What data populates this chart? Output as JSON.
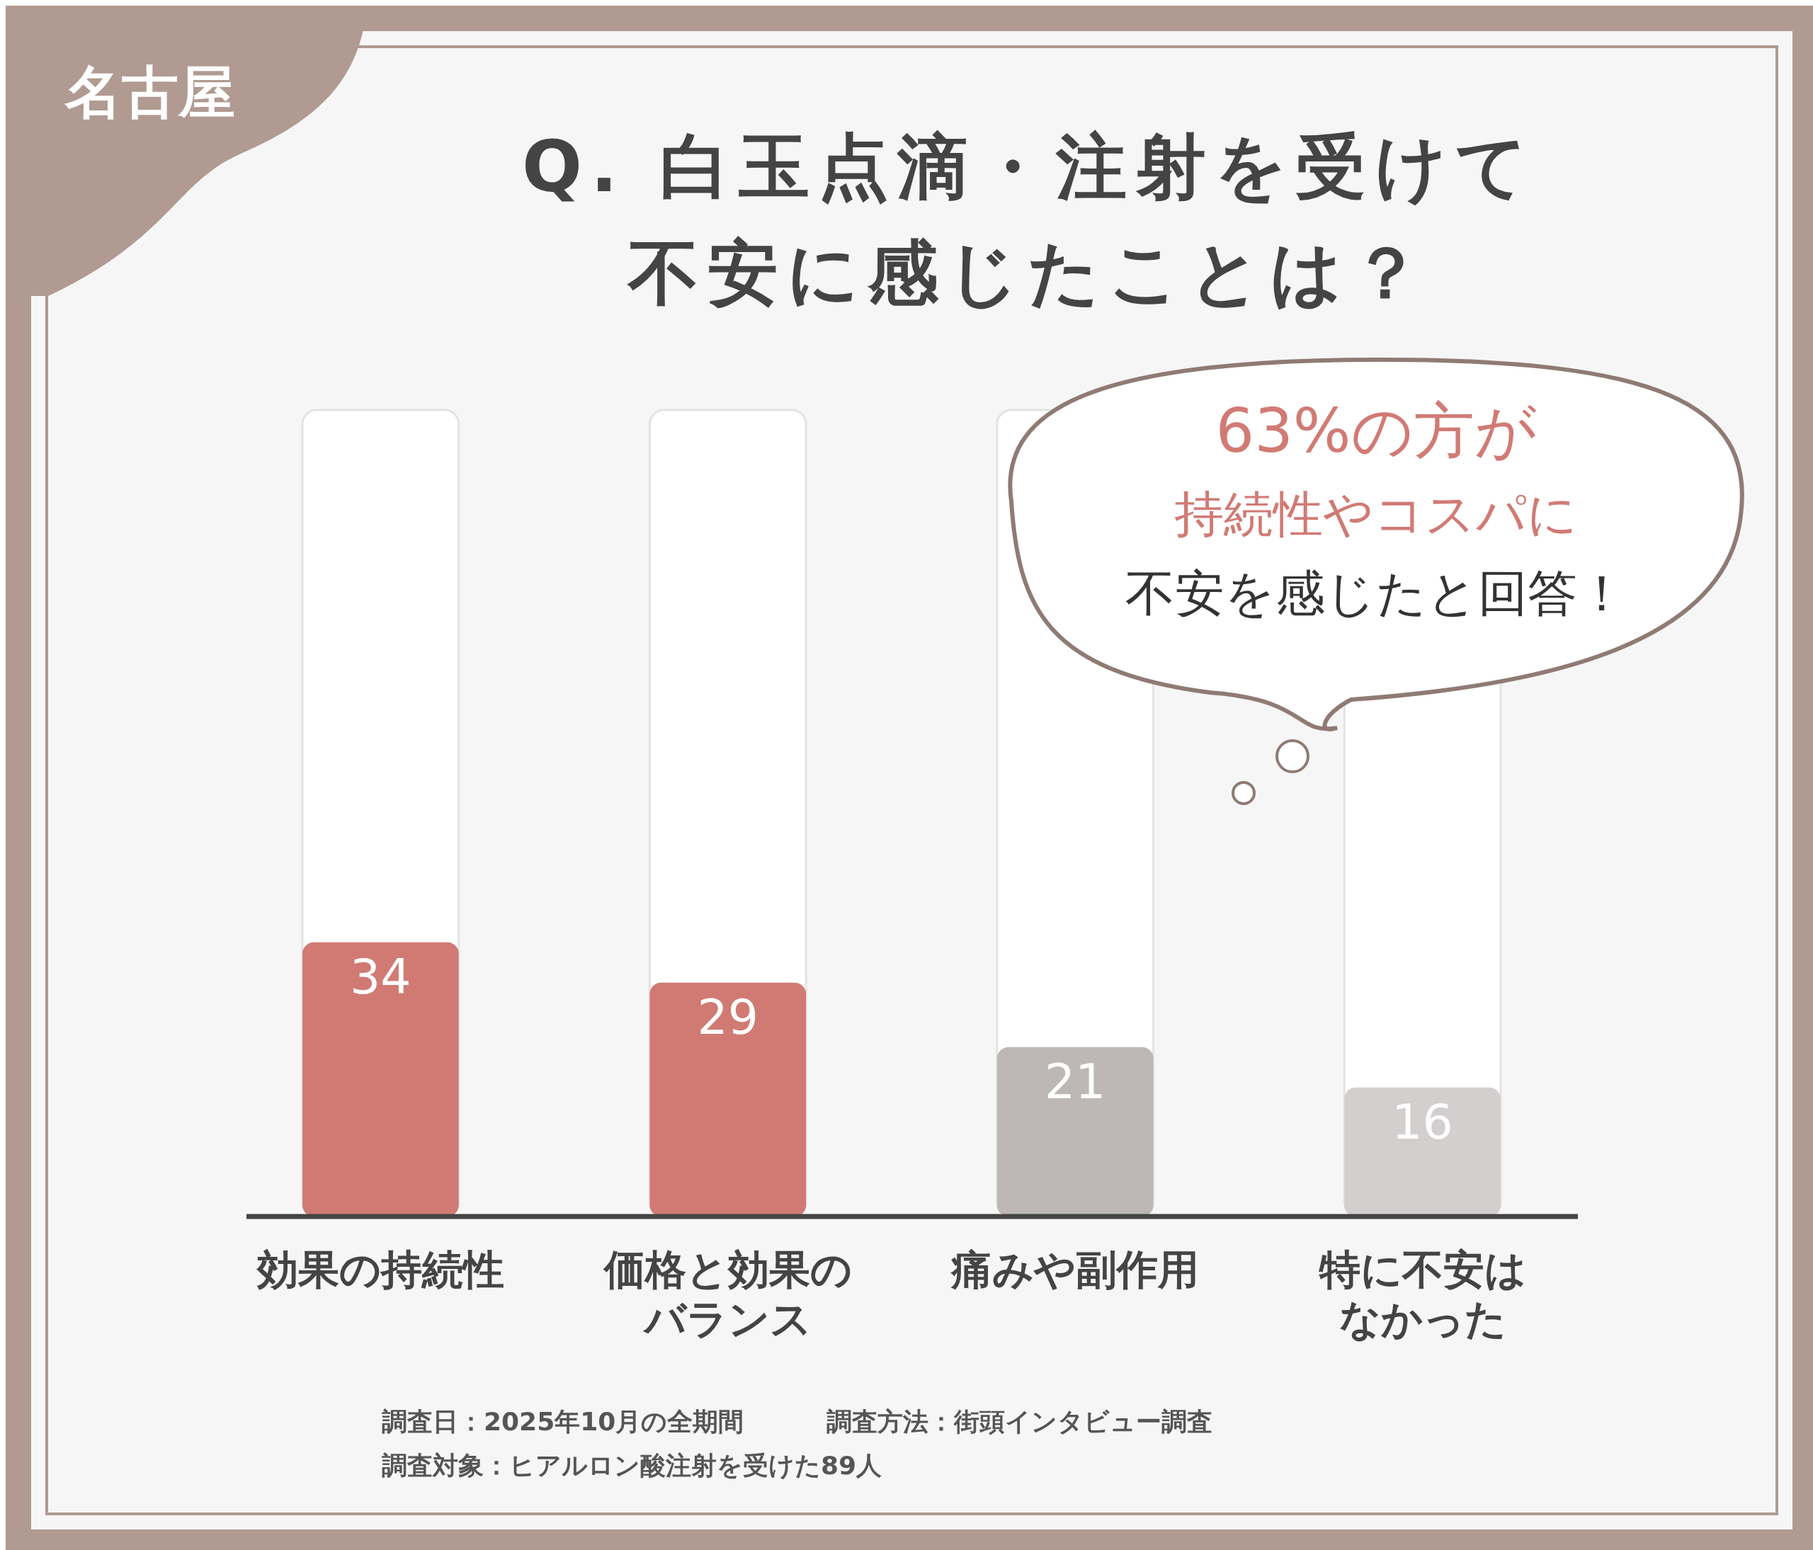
{
  "chart_data": {
    "type": "bar",
    "title": "Q. 白玉点滴・注射を受けて不安に感じたことは？",
    "categories": [
      "効果の持続性",
      "価格と効果のバランス",
      "痛みや副作用",
      "特に不安はなかった"
    ],
    "values": [
      34,
      29,
      21,
      16
    ],
    "colors": [
      "#d17a74",
      "#d17a74",
      "#bdb7b5",
      "#d3cfce"
    ],
    "ylim": [
      0,
      100
    ],
    "tick_labels": "x",
    "data_labels": true,
    "annotations": [
      "名古屋",
      "63%の方が",
      "持続性やコスパに",
      "不安を感じたと回答！",
      "調査日：2025年10月の全期間",
      "調査方法：街頭インタビュー調査",
      "調査対象：ヒアルロン酸注射を受けた89人"
    ]
  }
}
